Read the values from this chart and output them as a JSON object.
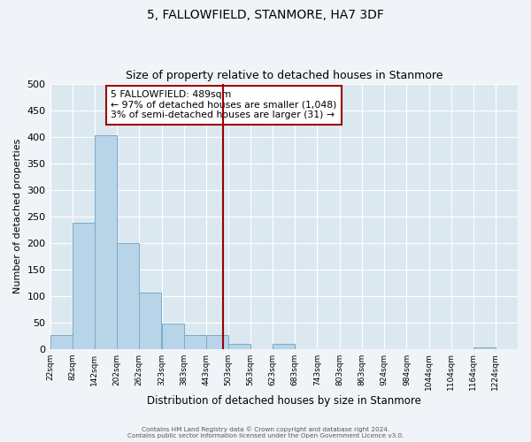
{
  "title": "5, FALLOWFIELD, STANMORE, HA7 3DF",
  "subtitle": "Size of property relative to detached houses in Stanmore",
  "xlabel": "Distribution of detached houses by size in Stanmore",
  "ylabel": "Number of detached properties",
  "bin_edges": [
    22,
    82,
    142,
    202,
    262,
    323,
    383,
    443,
    503,
    563,
    623,
    683,
    743,
    803,
    863,
    924,
    984,
    1044,
    1104,
    1164,
    1224
  ],
  "bin_labels": [
    "22sqm",
    "82sqm",
    "142sqm",
    "202sqm",
    "262sqm",
    "323sqm",
    "383sqm",
    "443sqm",
    "503sqm",
    "563sqm",
    "623sqm",
    "683sqm",
    "743sqm",
    "803sqm",
    "863sqm",
    "924sqm",
    "984sqm",
    "1044sqm",
    "1104sqm",
    "1164sqm",
    "1224sqm"
  ],
  "counts": [
    26,
    238,
    403,
    199,
    106,
    48,
    26,
    26,
    10,
    0,
    10,
    0,
    0,
    0,
    0,
    0,
    0,
    0,
    0,
    3
  ],
  "bar_color": "#b8d4e8",
  "bar_edge_color": "#7aaac8",
  "property_line_x": 489,
  "property_line_color": "#990000",
  "annotation_title": "5 FALLOWFIELD: 489sqm",
  "annotation_line1": "← 97% of detached houses are smaller (1,048)",
  "annotation_line2": "3% of semi-detached houses are larger (31) →",
  "annotation_box_color": "#990000",
  "ylim": [
    0,
    500
  ],
  "yticks": [
    0,
    50,
    100,
    150,
    200,
    250,
    300,
    350,
    400,
    450,
    500
  ],
  "fig_bg_color": "#f0f4f8",
  "ax_bg_color": "#dce8f0",
  "grid_color": "#ffffff",
  "footer1": "Contains HM Land Registry data © Crown copyright and database right 2024.",
  "footer2": "Contains public sector information licensed under the Open Government Licence v3.0."
}
